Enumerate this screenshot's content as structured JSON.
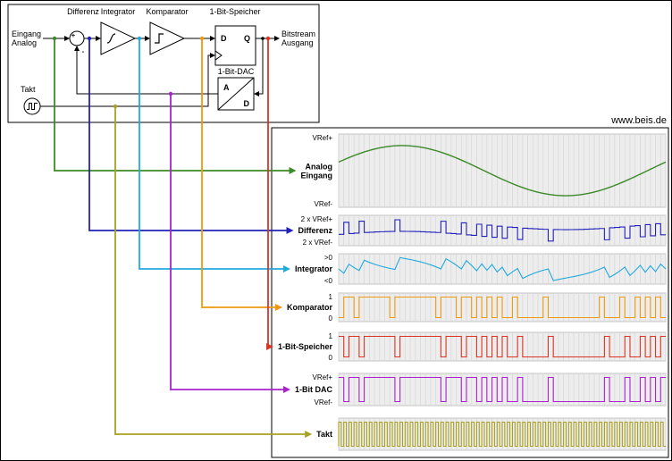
{
  "watermark": "www.beis.de",
  "block_diagram": {
    "input_label": [
      "Eingang",
      "Analog"
    ],
    "output_label": [
      "Bitstream",
      "Ausgang"
    ],
    "clock_label": "Takt",
    "labels": {
      "differenz": "Differenz",
      "integrator": "Integrator",
      "komparator": "Komparator",
      "speicher": "1-Bit-Speicher",
      "dac": "1-Bit-DAC"
    },
    "pins": {
      "ff_d": "D",
      "ff_q": "Q",
      "dac_a": "A",
      "dac_d": "D",
      "sum_plus": "+",
      "sum_minus": "-"
    }
  },
  "waveform_panel": {
    "rows": [
      {
        "id": "analog-eingang",
        "label_lines": [
          "Analog",
          "Eingang"
        ],
        "top_label": "VRef+",
        "bottom_label": "VRef-",
        "color": "#3c8a28",
        "type": "analog"
      },
      {
        "id": "differenz",
        "label_lines": [
          "Differenz"
        ],
        "top_label": "2 x VRef+",
        "bottom_label": "2 x VRef-",
        "color": "#2222bb",
        "type": "differenz"
      },
      {
        "id": "integrator",
        "label_lines": [
          "Integrator"
        ],
        "top_label": ">0",
        "bottom_label": "<0",
        "color": "#22aadd",
        "type": "integrator"
      },
      {
        "id": "komparator",
        "label_lines": [
          "Komparator"
        ],
        "top_label": "1",
        "bottom_label": "0",
        "color": "#ee9911",
        "type": "komparator"
      },
      {
        "id": "1-bit-speicher",
        "label_lines": [
          "1-Bit-Speicher"
        ],
        "top_label": "1",
        "bottom_label": "0",
        "color": "#dd3322",
        "type": "speicher"
      },
      {
        "id": "1-bit-dac",
        "label_lines": [
          "1-Bit DAC"
        ],
        "top_label": "VRef+",
        "bottom_label": "VRef-",
        "color": "#aa22cc",
        "type": "dac"
      },
      {
        "id": "takt",
        "label_lines": [
          "Takt"
        ],
        "top_label": "",
        "bottom_label": "",
        "color": "#a8a022",
        "type": "takt"
      }
    ],
    "simulation": {
      "clock_cycles": 64,
      "sine_amplitude": 0.85,
      "sine_phase": 0.35,
      "integrator_gain": 0.6
    }
  }
}
